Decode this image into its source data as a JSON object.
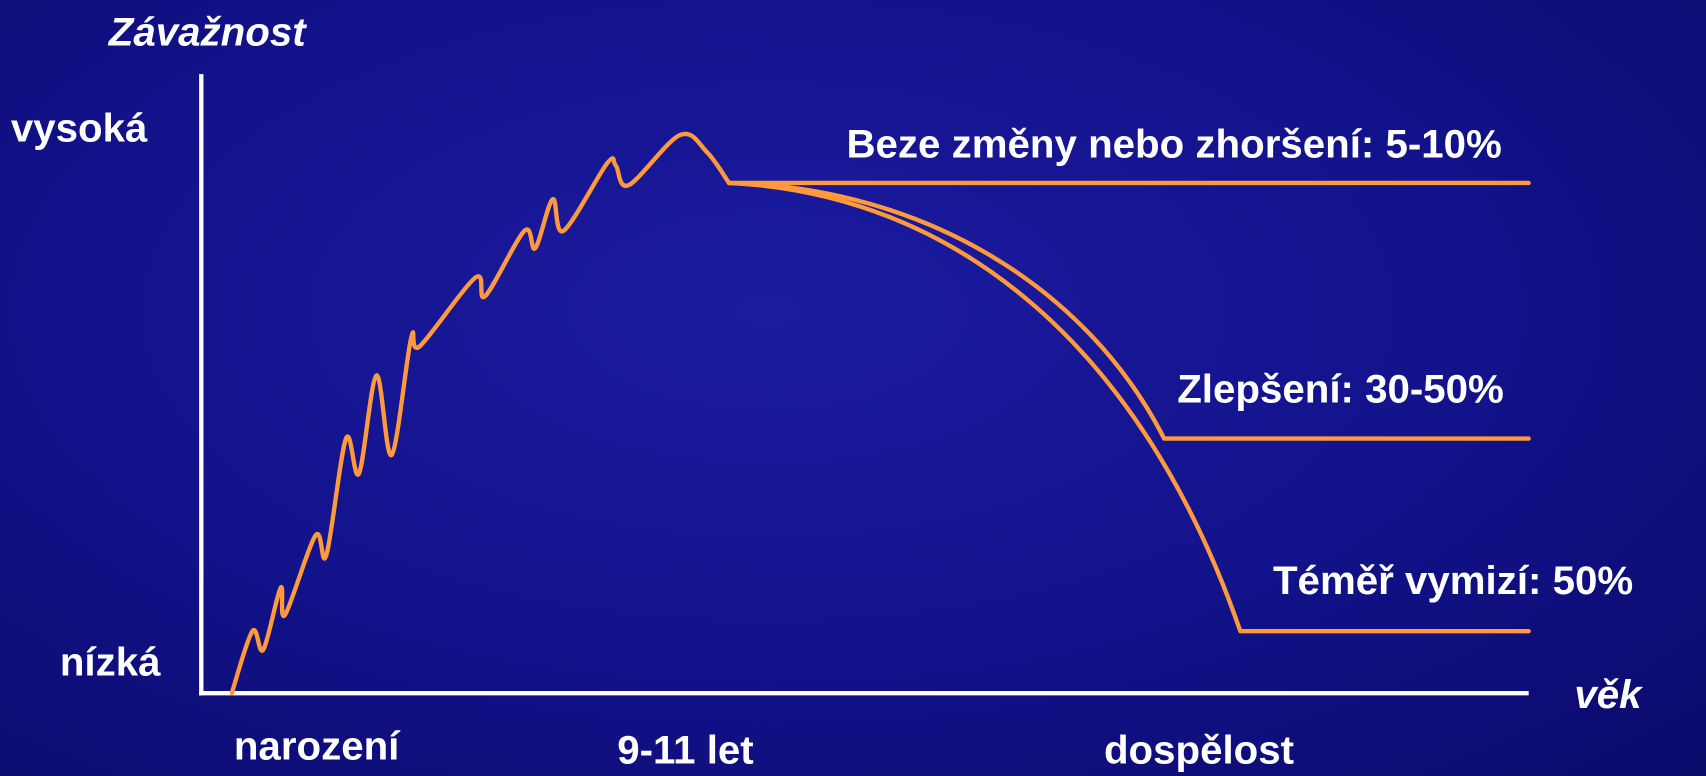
{
  "axes": {
    "y_title": "Závažnost",
    "y_high": "vysoká",
    "y_low": "nízká",
    "x_title": "věk",
    "x_labels": [
      "narození",
      "9-11 let",
      "dospělost"
    ]
  },
  "outcomes": [
    "Beze změny nebo zhoršení: 5-10%",
    "Zlepšení: 30-50%",
    "Téměř vymizí: 50%"
  ]
}
